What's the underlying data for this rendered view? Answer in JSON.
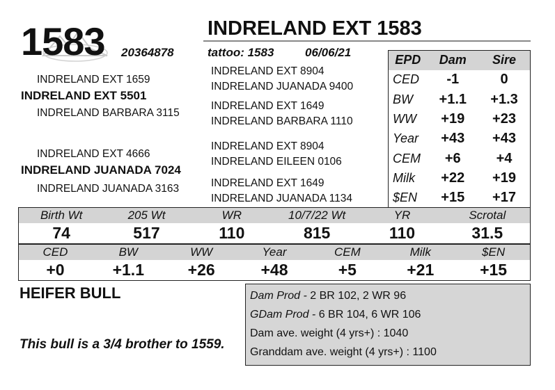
{
  "header": {
    "lot_number": "1583",
    "animal_name": "INDRELAND EXT 1583",
    "registration": "20364878",
    "tattoo": "tattoo: 1583",
    "birth_date": "06/06/21"
  },
  "pedigree": {
    "sire": {
      "name": "INDRELAND EXT 5501",
      "sire": "INDRELAND EXT 1659",
      "dam": "INDRELAND BARBARA 3115",
      "sire_sire": "INDRELAND EXT 8904",
      "sire_dam": "INDRELAND JUANADA 9400",
      "dam_sire": "INDRELAND EXT 1649",
      "dam_dam": "INDRELAND BARBARA 1110"
    },
    "dam": {
      "name": "INDRELAND JUANADA 7024",
      "sire": "INDRELAND EXT 4666",
      "dam": "INDRELAND JUANADA 3163",
      "sire_sire": "INDRELAND EXT 8904",
      "sire_dam": "INDRELAND EILEEN 0106",
      "dam_sire": "INDRELAND EXT 1649",
      "dam_dam": "INDRELAND JUANADA 1134"
    }
  },
  "parent_epd": {
    "headers": [
      "EPD",
      "Dam",
      "Sire"
    ],
    "rows": [
      {
        "trait": "CED",
        "dam": "-1",
        "sire": "0"
      },
      {
        "trait": "BW",
        "dam": "+1.1",
        "sire": "+1.3"
      },
      {
        "trait": "WW",
        "dam": "+19",
        "sire": "+23"
      },
      {
        "trait": "Year",
        "dam": "+43",
        "sire": "+43"
      },
      {
        "trait": "CEM",
        "dam": "+6",
        "sire": "+4"
      },
      {
        "trait": "Milk",
        "dam": "+22",
        "sire": "+19"
      },
      {
        "trait": "$EN",
        "dam": "+15",
        "sire": "+17"
      }
    ]
  },
  "weights": {
    "labels": [
      "Birth Wt",
      "205 Wt",
      "WR",
      "10/7/22 Wt",
      "YR",
      "Scrotal"
    ],
    "values": [
      "74",
      "517",
      "110",
      "815",
      "110",
      "31.5"
    ]
  },
  "calf_epd": {
    "labels": [
      "CED",
      "BW",
      "WW",
      "Year",
      "CEM",
      "Milk",
      "$EN"
    ],
    "values": [
      "+0",
      "+1.1",
      "+26",
      "+48",
      "+5",
      "+21",
      "+15"
    ]
  },
  "classification": "HEIFER BULL",
  "comment": "This bull is a 3/4 brother to 1559.",
  "production": {
    "dam_prod_label": "Dam Prod - ",
    "dam_prod_value": "2 BR 102, 2 WR 96",
    "gdam_prod_label": "GDam Prod - ",
    "gdam_prod_value": "6 BR 104, 6 WR 106",
    "dam_avg_weight": "Dam ave. weight (4 yrs+) : 1040",
    "granddam_avg_weight": "Granddam ave. weight (4 yrs+) : 1100"
  }
}
